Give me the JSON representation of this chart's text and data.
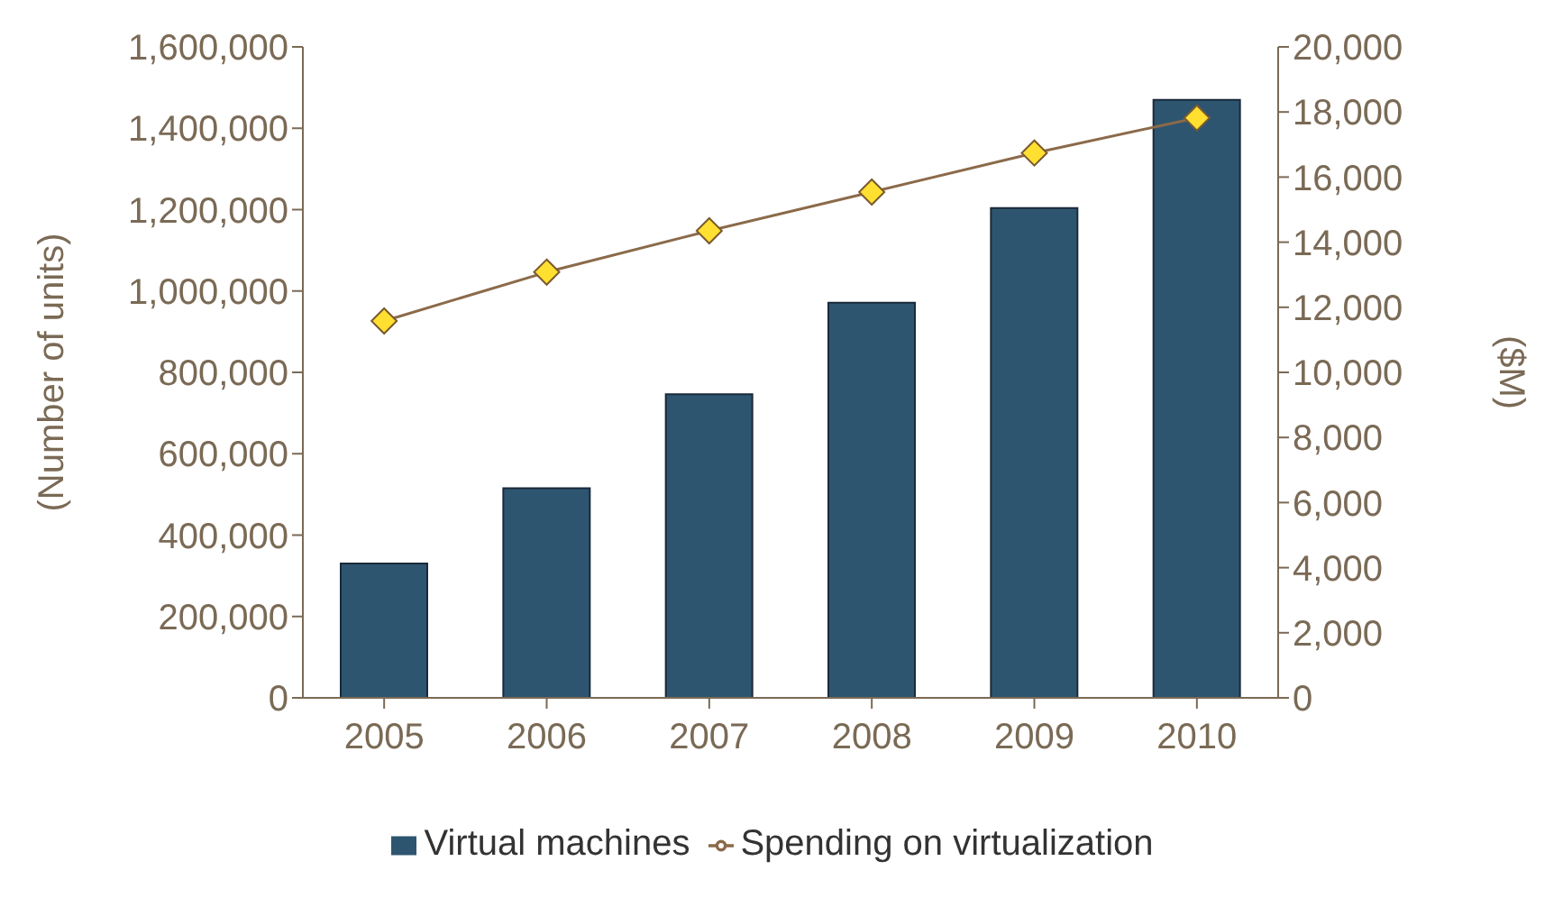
{
  "chart_data": {
    "type": "bar",
    "categories": [
      "2005",
      "2006",
      "2007",
      "2008",
      "2009",
      "2010"
    ],
    "ylabel": "(Number of units)",
    "y2label": "($M)",
    "series": [
      {
        "name": "Virtual machines",
        "color": "#2e5570",
        "values": [
          330000,
          515000,
          746000,
          971000,
          1204000,
          1470000
        ]
      },
      {
        "name": "Spending on virtualization",
        "type": "line",
        "axis": "y2",
        "color": "#8b6a4a",
        "values": [
          11580,
          13080,
          14350,
          15540,
          16740,
          17820
        ]
      }
    ],
    "ylim": [
      0,
      1600000
    ],
    "yticks": [
      0,
      {
        "value": 200000,
        "label": "200,000"
      },
      {
        "value": 400000,
        "label": "400,000"
      },
      {
        "value": 600000,
        "label": "600,000"
      },
      {
        "value": 800000,
        "label": "800,000"
      },
      {
        "value": 1000000,
        "label": "1,000,000"
      },
      {
        "value": 1200000,
        "label": "1,200,000"
      },
      {
        "value": 1400000,
        "label": "1,400,000"
      },
      {
        "value": 1600000,
        "label": "1,600,000"
      }
    ],
    "y2lim": [
      0,
      20000
    ],
    "y2ticks": [
      0,
      {
        "value": 2000,
        "label": "2,000"
      },
      {
        "value": 4000,
        "label": "4,000"
      },
      {
        "value": 6000,
        "label": "6,000"
      },
      {
        "value": 8000,
        "label": "8,000"
      },
      {
        "value": 10000,
        "label": "10,000"
      },
      {
        "value": 12000,
        "label": "12,000"
      },
      {
        "value": 14000,
        "label": "14,000"
      },
      {
        "value": 16000,
        "label": "16,000"
      },
      {
        "value": 18000,
        "label": "18,000"
      },
      {
        "value": 20000,
        "label": "20,000"
      }
    ],
    "marker": "diamond",
    "legend": "bottom"
  }
}
